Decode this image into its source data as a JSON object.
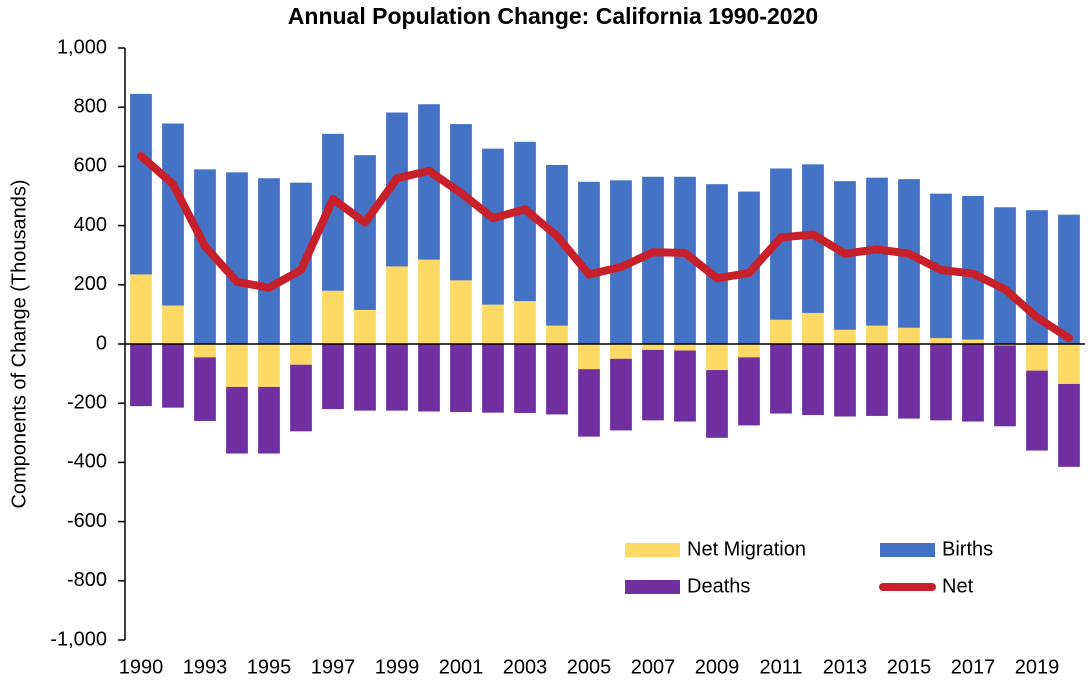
{
  "chart_data": {
    "type": "stacked_bar_line",
    "title": "Annual Population Change: California 1990-2020",
    "y_label": "Components of Change (Thousands)",
    "categories": [
      "1990",
      null,
      "1993",
      null,
      "1995",
      null,
      "1997",
      null,
      "1999",
      null,
      "2001",
      null,
      "2003",
      null,
      "2005",
      null,
      "2007",
      null,
      "2009",
      null,
      "2011",
      null,
      "2013",
      null,
      "2015",
      null,
      "2017",
      null,
      "2019",
      null
    ],
    "series": [
      {
        "name": "Net Migration",
        "color": "#ffd966",
        "kind": "bar",
        "values": [
          235,
          130,
          -45,
          -145,
          -145,
          -70,
          180,
          115,
          262,
          285,
          215,
          133,
          145,
          62,
          -85,
          -50,
          -20,
          -22,
          -88,
          -45,
          82,
          105,
          48,
          62,
          55,
          20,
          15,
          -5,
          -90,
          -135
        ]
      },
      {
        "name": "Births",
        "color": "#4472c4",
        "kind": "bar",
        "values": [
          610,
          615,
          590,
          580,
          560,
          545,
          530,
          523,
          520,
          525,
          528,
          527,
          538,
          543,
          548,
          553,
          565,
          565,
          540,
          515,
          511,
          502,
          502,
          500,
          502,
          488,
          485,
          462,
          452,
          437
        ]
      },
      {
        "name": "Deaths",
        "color": "#7030a0",
        "kind": "bar",
        "values": [
          -210,
          -215,
          -215,
          -225,
          -225,
          -225,
          -220,
          -225,
          -225,
          -228,
          -230,
          -232,
          -233,
          -238,
          -228,
          -242,
          -238,
          -240,
          -229,
          -230,
          -235,
          -240,
          -245,
          -243,
          -252,
          -258,
          -262,
          -273,
          -270,
          -280
        ]
      },
      {
        "name": "Net",
        "color": "#c8202a",
        "kind": "line",
        "values": [
          635,
          540,
          330,
          210,
          190,
          250,
          490,
          410,
          560,
          585,
          510,
          425,
          455,
          365,
          235,
          260,
          310,
          308,
          222,
          240,
          360,
          370,
          305,
          320,
          305,
          250,
          238,
          185,
          90,
          20
        ]
      }
    ],
    "ylim": [
      -1000,
      1000
    ],
    "yticks": [
      {
        "value": -1000,
        "label": "-1,000"
      },
      -800,
      -600,
      -400,
      -200,
      0,
      200,
      400,
      600,
      800,
      {
        "value": 1000,
        "label": "1,000"
      }
    ],
    "grid": false
  }
}
